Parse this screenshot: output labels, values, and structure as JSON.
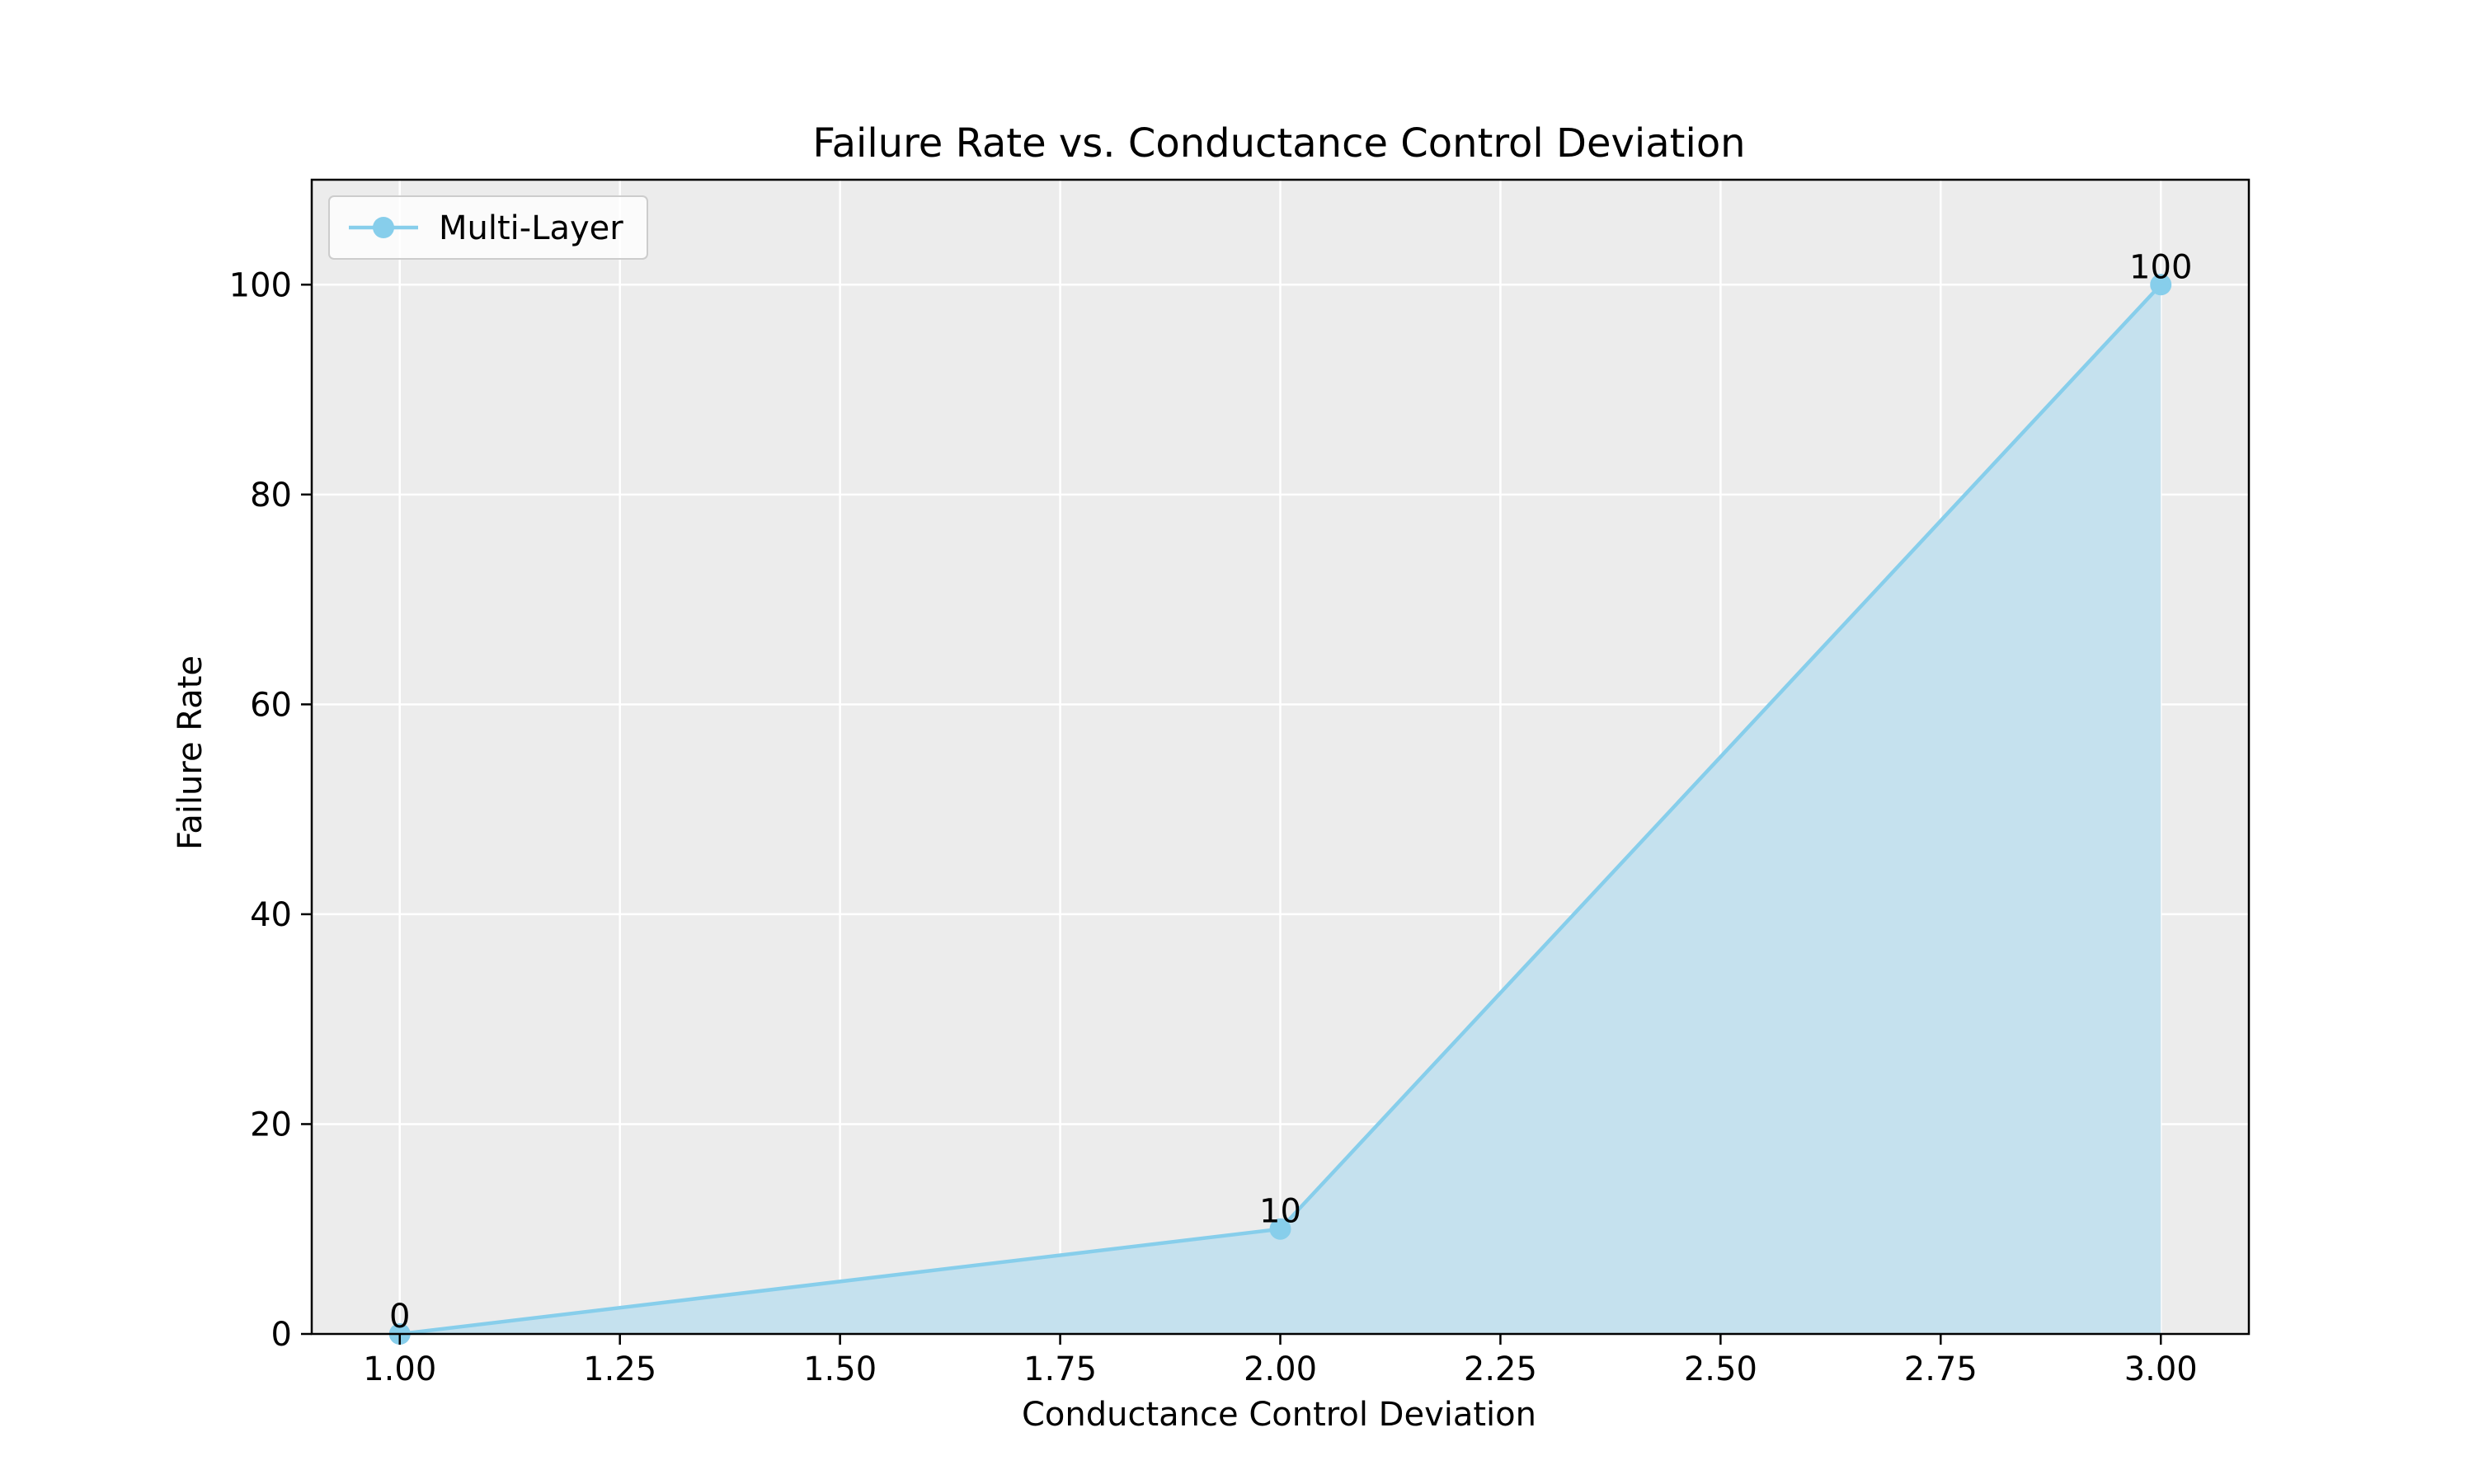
{
  "chart_data": {
    "type": "area",
    "title": "Failure Rate vs. Conductance Control Deviation",
    "xlabel": "Conductance Control Deviation",
    "ylabel": "Failure Rate",
    "xlim": [
      0.9,
      3.1
    ],
    "ylim": [
      0,
      110
    ],
    "xticks": [
      1.0,
      1.25,
      1.5,
      1.75,
      2.0,
      2.25,
      2.5,
      2.75,
      3.0
    ],
    "xtick_labels": [
      "1.00",
      "1.25",
      "1.50",
      "1.75",
      "2.00",
      "2.25",
      "2.50",
      "2.75",
      "3.00"
    ],
    "yticks": [
      0,
      20,
      40,
      60,
      80,
      100
    ],
    "ytick_labels": [
      "0",
      "20",
      "40",
      "60",
      "80",
      "100"
    ],
    "grid": true,
    "legend_position": "top-left",
    "background_color": "#ececec",
    "series": [
      {
        "name": "Multi-Layer",
        "color": "#87ceeb",
        "fill_color": "#c5e1ee",
        "marker": "circle",
        "x": [
          1.0,
          2.0,
          3.0
        ],
        "y": [
          0,
          10,
          100
        ],
        "data_labels": [
          "0",
          "10",
          "100"
        ]
      }
    ]
  }
}
